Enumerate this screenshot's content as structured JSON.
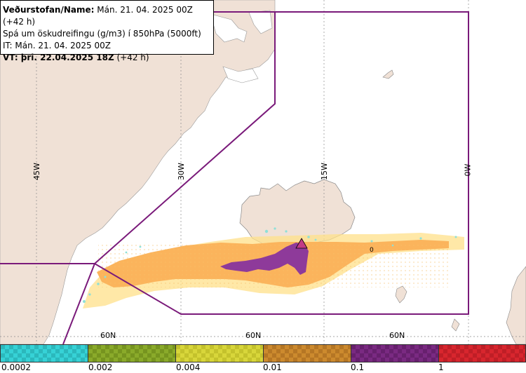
{
  "header": {
    "title_bold": "Veðurstofan/Name:",
    "title_rest": " Mán. 21. 04. 2025 00Z (+42 h)",
    "line2": "Spá um öskudreifingu (g/m3) í 850hPa (5000ft)",
    "line3": "IT: Mán. 21. 04. 2025 00Z",
    "line4_bold": "VT: þri. 22.04.2025 18Z",
    "line4_rest": " (+42 h)"
  },
  "grid_labels": {
    "lon": [
      "45W",
      "30W",
      "15W",
      "0W"
    ],
    "lat": [
      "60N",
      "60N",
      "60N"
    ]
  },
  "contour_label": "0",
  "legend": {
    "colors": [
      "#36d2d6",
      "#8aaa2a",
      "#d8d63a",
      "#cc8a2e",
      "#7a2a82",
      "#d8262e"
    ],
    "ticks": [
      "0.0002",
      "0.002",
      "0.004",
      "0.01",
      "0.1",
      "1"
    ]
  },
  "colors": {
    "land": "#f0e1d6",
    "sea": "#ffffff",
    "boundary": "#7a1a7a",
    "plume_light": "#ffe08a",
    "plume_main": "#fbb45c",
    "plume_core": "#8e3a9a",
    "plume_edge": "#8fe0d8"
  }
}
